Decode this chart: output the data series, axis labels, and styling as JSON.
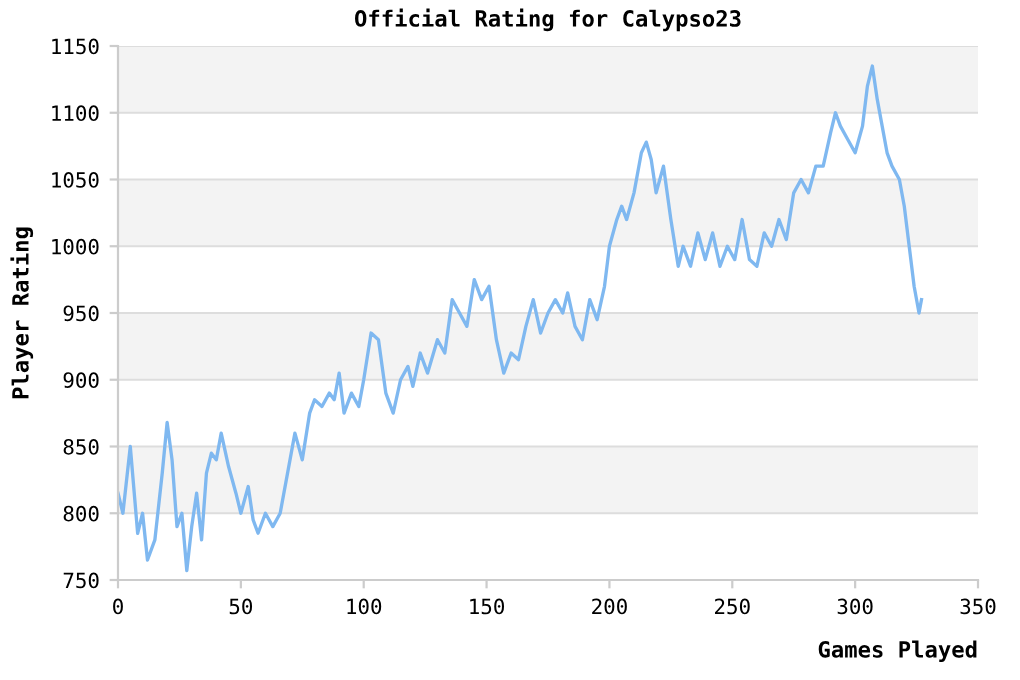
{
  "chart_data": {
    "type": "line",
    "title": "Official Rating for Calypso23",
    "xlabel": "Games Played",
    "ylabel": "Player Rating",
    "xlim": [
      0,
      350
    ],
    "xticks": [
      0,
      50,
      100,
      150,
      200,
      250,
      300,
      350
    ],
    "ylim": [
      750,
      1150
    ],
    "yticks": [
      750,
      800,
      850,
      900,
      950,
      1000,
      1050,
      1100,
      1150
    ],
    "grid": "y",
    "marker": "none",
    "line_style": "solid",
    "series": [
      {
        "color": "#7fb8f0",
        "x": [
          0,
          2,
          5,
          8,
          10,
          12,
          15,
          18,
          20,
          22,
          24,
          26,
          28,
          30,
          32,
          34,
          36,
          38,
          40,
          42,
          45,
          48,
          50,
          53,
          55,
          57,
          60,
          63,
          66,
          70,
          72,
          75,
          78,
          80,
          83,
          86,
          88,
          90,
          92,
          95,
          98,
          100,
          103,
          106,
          109,
          112,
          115,
          118,
          120,
          123,
          126,
          130,
          133,
          136,
          139,
          142,
          145,
          148,
          151,
          154,
          157,
          160,
          163,
          166,
          169,
          172,
          175,
          178,
          181,
          183,
          186,
          189,
          192,
          195,
          198,
          200,
          203,
          205,
          207,
          210,
          213,
          215,
          217,
          219,
          222,
          225,
          228,
          230,
          233,
          236,
          239,
          242,
          245,
          248,
          251,
          254,
          257,
          260,
          263,
          266,
          269,
          272,
          275,
          278,
          281,
          284,
          287,
          290,
          292,
          294,
          297,
          300,
          303,
          305,
          307,
          309,
          311,
          313,
          315,
          318,
          320,
          322,
          324,
          326,
          327
        ],
        "values": [
          815,
          800,
          850,
          785,
          800,
          765,
          780,
          830,
          868,
          840,
          790,
          800,
          757,
          790,
          815,
          780,
          830,
          845,
          840,
          860,
          835,
          815,
          800,
          820,
          795,
          785,
          800,
          790,
          800,
          840,
          860,
          840,
          875,
          885,
          880,
          890,
          885,
          905,
          875,
          890,
          880,
          900,
          935,
          930,
          890,
          875,
          900,
          910,
          895,
          920,
          905,
          930,
          920,
          960,
          950,
          940,
          975,
          960,
          970,
          930,
          905,
          920,
          915,
          940,
          960,
          935,
          950,
          960,
          950,
          965,
          940,
          930,
          960,
          945,
          970,
          1000,
          1020,
          1030,
          1020,
          1040,
          1070,
          1078,
          1065,
          1040,
          1060,
          1020,
          985,
          1000,
          985,
          1010,
          990,
          1010,
          985,
          1000,
          990,
          1020,
          990,
          985,
          1010,
          1000,
          1020,
          1005,
          1040,
          1050,
          1040,
          1060,
          1060,
          1085,
          1100,
          1090,
          1080,
          1070,
          1090,
          1120,
          1135,
          1110,
          1090,
          1070,
          1060,
          1050,
          1030,
          1000,
          970,
          950,
          960
        ]
      }
    ]
  }
}
